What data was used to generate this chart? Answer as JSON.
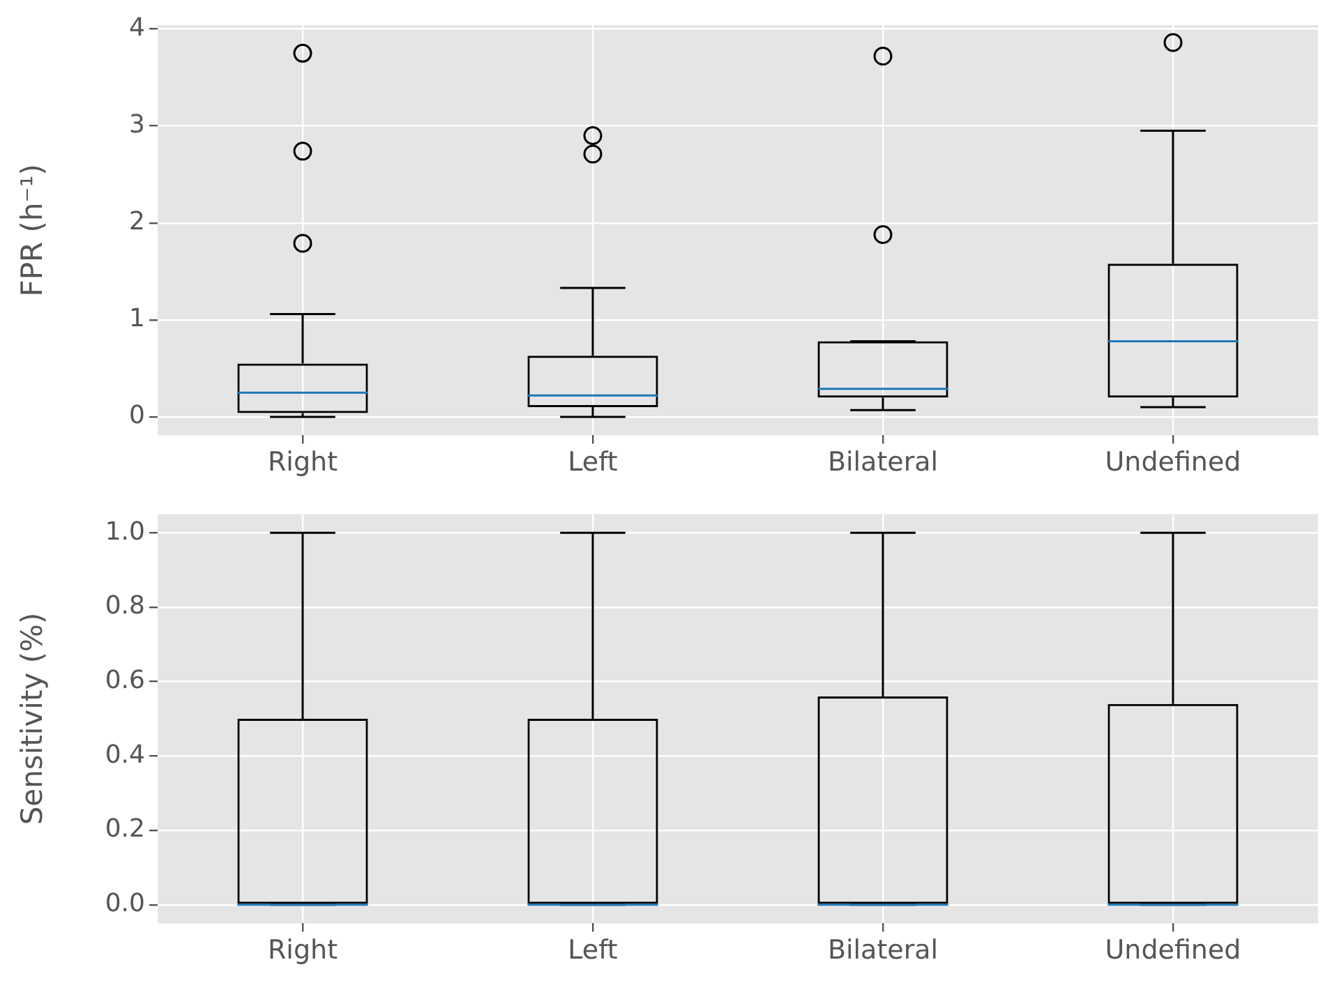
{
  "chart_data": [
    {
      "type": "box",
      "ylabel": "FPR (h⁻¹)",
      "categories": [
        "Right",
        "Left",
        "Bilateral",
        "Undefined"
      ],
      "boxes": [
        {
          "low": 0,
          "q1": 0.04,
          "median": 0.25,
          "q3": 0.55,
          "high": 1.06,
          "outliers": [
            1.79,
            2.74,
            3.75
          ]
        },
        {
          "low": 0,
          "q1": 0.1,
          "median": 0.22,
          "q3": 0.63,
          "high": 1.33,
          "outliers": [
            2.71,
            2.9
          ]
        },
        {
          "low": 0.07,
          "q1": 0.2,
          "median": 0.29,
          "q3": 0.78,
          "high": 0.78,
          "outliers": [
            1.88,
            3.72
          ]
        },
        {
          "low": 0.1,
          "q1": 0.2,
          "median": 0.78,
          "q3": 1.58,
          "high": 2.95,
          "outliers": [
            3.86
          ]
        }
      ],
      "ylim": [
        -0.19,
        4.04
      ],
      "yticks": [
        0,
        1,
        2,
        3,
        4
      ],
      "grid": true
    },
    {
      "type": "box",
      "ylabel": "Sensitivity (%)",
      "categories": [
        "Right",
        "Left",
        "Bilateral",
        "Undefined"
      ],
      "boxes": [
        {
          "low": 0,
          "q1": 0,
          "median": 0,
          "q3": 0.5,
          "high": 1
        },
        {
          "low": 0,
          "q1": 0,
          "median": 0,
          "q3": 0.5,
          "high": 1
        },
        {
          "low": 0,
          "q1": 0,
          "median": 0,
          "q3": 0.56,
          "high": 1
        },
        {
          "low": 0,
          "q1": 0,
          "median": 0,
          "q3": 0.54,
          "high": 1
        }
      ],
      "ylim": [
        -0.05,
        1.05
      ],
      "yticks": [
        {
          "value": 0,
          "label": "0.0"
        },
        {
          "value": 0.2,
          "label": "0.2"
        },
        {
          "value": 0.4,
          "label": "0.4"
        },
        {
          "value": 0.6,
          "label": "0.6"
        },
        {
          "value": 0.8,
          "label": "0.8"
        },
        {
          "value": 1,
          "label": "1.0"
        }
      ],
      "grid": true
    }
  ]
}
